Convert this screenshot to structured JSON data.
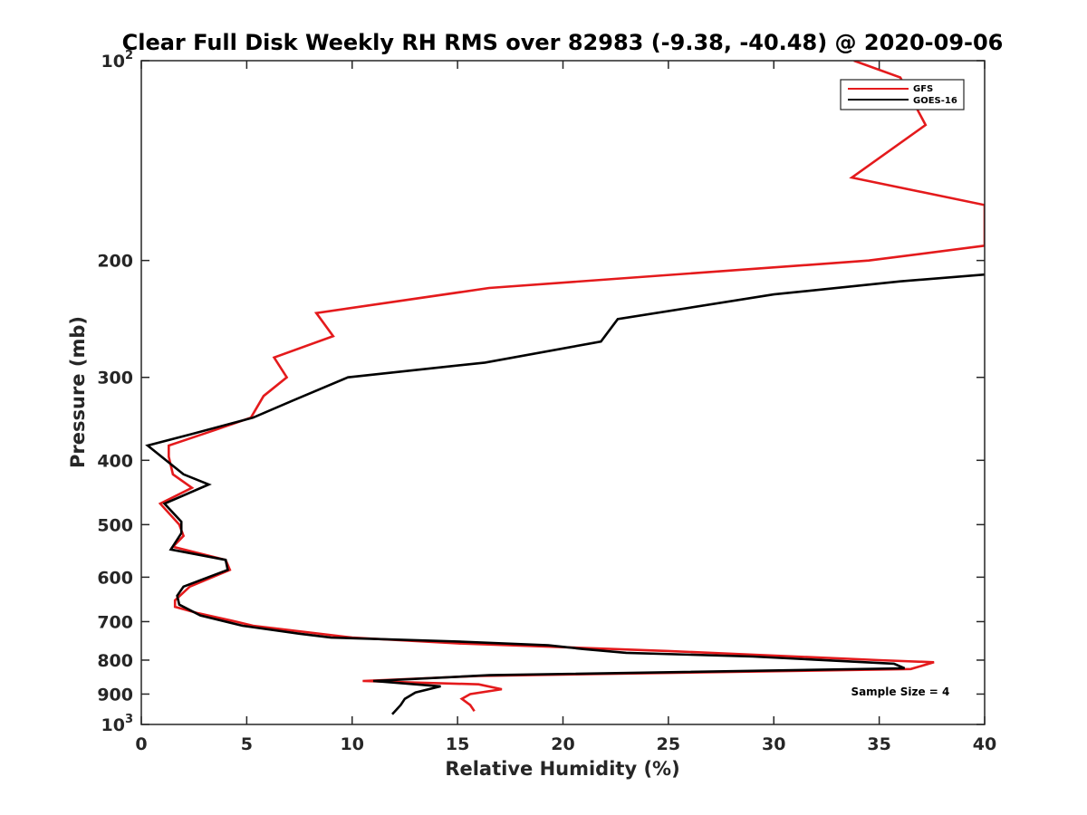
{
  "chart_data": {
    "type": "line",
    "title": "Clear Full Disk Weekly RH RMS over 82983 (-9.38, -40.48) @ 2020-09-06",
    "xlabel": "Relative Humidity (%)",
    "ylabel": "Pressure (mb)",
    "xlim": [
      0,
      40
    ],
    "ylim": [
      100,
      1000
    ],
    "yscale": "log",
    "y_reversed": true,
    "grid": false,
    "xticks": [
      0,
      5,
      10,
      15,
      20,
      25,
      30,
      35,
      40
    ],
    "xtick_labels": [
      "0",
      "5",
      "10",
      "15",
      "20",
      "25",
      "30",
      "35",
      "40"
    ],
    "yticks": [
      {
        "value": 100,
        "base": "10",
        "exp": "2"
      },
      {
        "value": 200,
        "label": "200"
      },
      {
        "value": 300,
        "label": "300"
      },
      {
        "value": 400,
        "label": "400"
      },
      {
        "value": 500,
        "label": "500"
      },
      {
        "value": 600,
        "label": "600"
      },
      {
        "value": 700,
        "label": "700"
      },
      {
        "value": 800,
        "label": "800"
      },
      {
        "value": 900,
        "label": "900"
      },
      {
        "value": 1000,
        "base": "10",
        "exp": "3"
      }
    ],
    "legend_position": "top-right",
    "series": [
      {
        "name": "GFS",
        "color": "#e41a1c",
        "points": [
          [
            33.8,
            100
          ],
          [
            36.0,
            106
          ],
          [
            37.2,
            125
          ],
          [
            33.7,
            150
          ],
          [
            40.0,
            165
          ],
          [
            40.0,
            190
          ],
          [
            34.5,
            200
          ],
          [
            16.5,
            220
          ],
          [
            8.3,
            240
          ],
          [
            9.1,
            260
          ],
          [
            6.3,
            280
          ],
          [
            6.9,
            300
          ],
          [
            5.8,
            320
          ],
          [
            5.2,
            345
          ],
          [
            3.5,
            360
          ],
          [
            1.3,
            380
          ],
          [
            1.3,
            395
          ],
          [
            1.5,
            420
          ],
          [
            2.4,
            440
          ],
          [
            0.9,
            465
          ],
          [
            1.8,
            500
          ],
          [
            2.0,
            520
          ],
          [
            1.5,
            540
          ],
          [
            4.0,
            565
          ],
          [
            4.2,
            585
          ],
          [
            2.3,
            620
          ],
          [
            1.6,
            650
          ],
          [
            1.6,
            665
          ],
          [
            2.7,
            680
          ],
          [
            4.5,
            700
          ],
          [
            5.3,
            710
          ],
          [
            10.0,
            740
          ],
          [
            15.0,
            755
          ],
          [
            25.0,
            775
          ],
          [
            35.0,
            800
          ],
          [
            37.6,
            806
          ],
          [
            36.5,
            825
          ],
          [
            16.0,
            845
          ],
          [
            10.5,
            860
          ],
          [
            16.0,
            870
          ],
          [
            17.1,
            885
          ],
          [
            15.6,
            900
          ],
          [
            15.2,
            915
          ],
          [
            15.6,
            935
          ],
          [
            15.8,
            955
          ]
        ]
      },
      {
        "name": "GOES-16",
        "color": "#000000",
        "points": [
          [
            40.0,
            210
          ],
          [
            36.0,
            215
          ],
          [
            30.0,
            225
          ],
          [
            22.6,
            245
          ],
          [
            21.8,
            265
          ],
          [
            16.3,
            285
          ],
          [
            9.8,
            300
          ],
          [
            7.2,
            325
          ],
          [
            5.3,
            345
          ],
          [
            2.4,
            365
          ],
          [
            0.3,
            380
          ],
          [
            2.0,
            420
          ],
          [
            3.2,
            435
          ],
          [
            1.1,
            465
          ],
          [
            1.9,
            495
          ],
          [
            1.9,
            515
          ],
          [
            1.4,
            545
          ],
          [
            4.0,
            565
          ],
          [
            4.1,
            585
          ],
          [
            2.0,
            620
          ],
          [
            1.7,
            640
          ],
          [
            1.8,
            660
          ],
          [
            2.8,
            685
          ],
          [
            4.8,
            710
          ],
          [
            7.5,
            730
          ],
          [
            9.0,
            740
          ],
          [
            15.0,
            750
          ],
          [
            19.3,
            760
          ],
          [
            21.0,
            770
          ],
          [
            23.0,
            780
          ],
          [
            29.0,
            790
          ],
          [
            35.7,
            810
          ],
          [
            36.2,
            823
          ],
          [
            16.5,
            843
          ],
          [
            11.0,
            860
          ],
          [
            14.2,
            876
          ],
          [
            13.0,
            895
          ],
          [
            12.5,
            915
          ],
          [
            12.3,
            935
          ],
          [
            11.9,
            965
          ]
        ]
      }
    ],
    "annotations": [
      {
        "text": "Sample Size = 4",
        "x": 36.0,
        "y": 905
      }
    ]
  }
}
